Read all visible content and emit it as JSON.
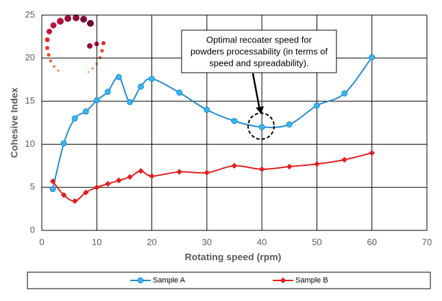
{
  "chart_data": {
    "type": "line",
    "x_label": "Rotating speed (rpm)",
    "y_label": "Cohesive Index",
    "annotation": [
      "Optimal recoater speed for",
      "powders processability (in terms of",
      "speed and spreadability)."
    ],
    "x": [
      2,
      4,
      6,
      8,
      10,
      12,
      14,
      16,
      18,
      20,
      25,
      30,
      35,
      40,
      45,
      50,
      55,
      60
    ],
    "series": [
      {
        "name": "Sample A",
        "color": "#1f8ad6",
        "marker_color": "#38b6ec",
        "values": [
          4.8,
          10.1,
          13,
          13.8,
          15.1,
          16.1,
          17.8,
          14.9,
          16.7,
          17.6,
          16,
          14,
          12.7,
          12,
          12.3,
          14.5,
          15.9,
          20.1
        ]
      },
      {
        "name": "Sample B",
        "color": "#e01e1e",
        "marker_color": "#e01e1e",
        "values": [
          5.7,
          4.1,
          3.4,
          4.4,
          5,
          5.4,
          5.8,
          6.2,
          6.9,
          6.3,
          6.8,
          6.7,
          7.5,
          7.1,
          7.4,
          7.7,
          8.2,
          9
        ]
      }
    ],
    "xlim": [
      0,
      70
    ],
    "xticks": [
      0,
      10,
      20,
      30,
      40,
      50,
      60,
      70
    ],
    "ylim": [
      0,
      25
    ],
    "yticks": [
      0,
      5,
      10,
      15,
      20,
      25
    ],
    "grid": true
  }
}
